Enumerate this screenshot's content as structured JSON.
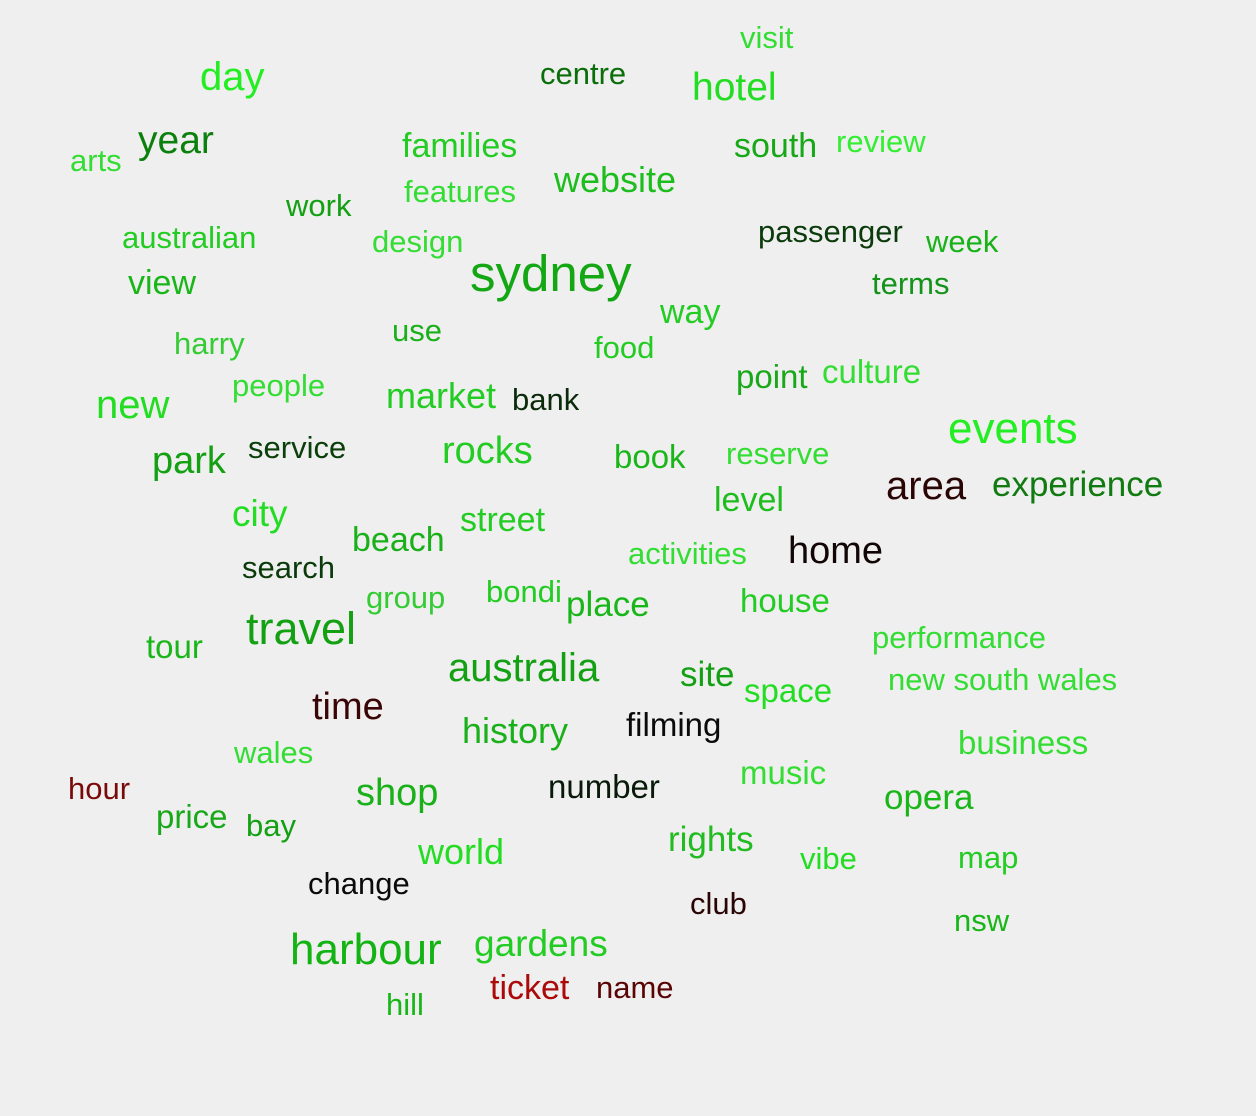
{
  "words": [
    {
      "text": "visit",
      "color": "#33dd33"
    },
    {
      "text": "centre",
      "color": "#0a6e0a"
    },
    {
      "text": "day",
      "color": "#22ee22"
    },
    {
      "text": "hotel",
      "color": "#22dd22"
    },
    {
      "text": "year",
      "color": "#0c800c"
    },
    {
      "text": "arts",
      "color": "#33dd33"
    },
    {
      "text": "families",
      "color": "#22cc22"
    },
    {
      "text": "south",
      "color": "#17a817"
    },
    {
      "text": "review",
      "color": "#33ee33"
    },
    {
      "text": "features",
      "color": "#33dd33"
    },
    {
      "text": "website",
      "color": "#1dbd1d"
    },
    {
      "text": "work",
      "color": "#13a013"
    },
    {
      "text": "australian",
      "color": "#22cc22"
    },
    {
      "text": "design",
      "color": "#33dd33"
    },
    {
      "text": "passenger",
      "color": "#0b3a0b"
    },
    {
      "text": "week",
      "color": "#19b319"
    },
    {
      "text": "sydney",
      "color": "#14a714"
    },
    {
      "text": "view",
      "color": "#19b619"
    },
    {
      "text": "terms",
      "color": "#13931a"
    },
    {
      "text": "way",
      "color": "#22cc22"
    },
    {
      "text": "use",
      "color": "#19b019"
    },
    {
      "text": "harry",
      "color": "#33cc33"
    },
    {
      "text": "food",
      "color": "#22cc22"
    },
    {
      "text": "people",
      "color": "#33dd33"
    },
    {
      "text": "point",
      "color": "#19a819"
    },
    {
      "text": "culture",
      "color": "#33dd33"
    },
    {
      "text": "new",
      "color": "#22dd22"
    },
    {
      "text": "market",
      "color": "#22cc22"
    },
    {
      "text": "bank",
      "color": "#0a2a0a"
    },
    {
      "text": "events",
      "color": "#22ee22"
    },
    {
      "text": "service",
      "color": "#0a3e0a"
    },
    {
      "text": "rocks",
      "color": "#22cc22"
    },
    {
      "text": "park",
      "color": "#13a013"
    },
    {
      "text": "book",
      "color": "#19b619"
    },
    {
      "text": "reserve",
      "color": "#33dd33"
    },
    {
      "text": "area",
      "color": "#2a0505"
    },
    {
      "text": "experience",
      "color": "#117a11"
    },
    {
      "text": "level",
      "color": "#1dbd1d"
    },
    {
      "text": "city",
      "color": "#22dd22"
    },
    {
      "text": "street",
      "color": "#22cc22"
    },
    {
      "text": "beach",
      "color": "#19b019"
    },
    {
      "text": "activities",
      "color": "#33dd33"
    },
    {
      "text": "home",
      "color": "#120505"
    },
    {
      "text": "search",
      "color": "#0b3a0b"
    },
    {
      "text": "group",
      "color": "#33cc33"
    },
    {
      "text": "bondi",
      "color": "#22cc22"
    },
    {
      "text": "place",
      "color": "#19b619"
    },
    {
      "text": "house",
      "color": "#22cc22"
    },
    {
      "text": "travel",
      "color": "#13a013"
    },
    {
      "text": "tour",
      "color": "#19b619"
    },
    {
      "text": "performance",
      "color": "#33dd33"
    },
    {
      "text": "australia",
      "color": "#13a013"
    },
    {
      "text": "site",
      "color": "#13a013"
    },
    {
      "text": "space",
      "color": "#22dd22"
    },
    {
      "text": "new south wales",
      "color": "#33dd33"
    },
    {
      "text": "time",
      "color": "#3a0505"
    },
    {
      "text": "history",
      "color": "#19b019"
    },
    {
      "text": "filming",
      "color": "#0a0a0a"
    },
    {
      "text": "wales",
      "color": "#33dd33"
    },
    {
      "text": "business",
      "color": "#33dd33"
    },
    {
      "text": "hour",
      "color": "#7a0a0a"
    },
    {
      "text": "shop",
      "color": "#19b019"
    },
    {
      "text": "number",
      "color": "#0a1a0a"
    },
    {
      "text": "music",
      "color": "#33dd33"
    },
    {
      "text": "opera",
      "color": "#19b619"
    },
    {
      "text": "price",
      "color": "#19a819"
    },
    {
      "text": "bay",
      "color": "#13a013"
    },
    {
      "text": "world",
      "color": "#22dd22"
    },
    {
      "text": "rights",
      "color": "#22bb22"
    },
    {
      "text": "vibe",
      "color": "#22dd22"
    },
    {
      "text": "map",
      "color": "#22cc22"
    },
    {
      "text": "change",
      "color": "#0a0a0a"
    },
    {
      "text": "club",
      "color": "#2a0505"
    },
    {
      "text": "nsw",
      "color": "#19b619"
    },
    {
      "text": "harbour",
      "color": "#13b313"
    },
    {
      "text": "gardens",
      "color": "#22cc22"
    },
    {
      "text": "ticket",
      "color": "#aa0a0a"
    },
    {
      "text": "name",
      "color": "#5a0505"
    },
    {
      "text": "hill",
      "color": "#19b619"
    }
  ]
}
